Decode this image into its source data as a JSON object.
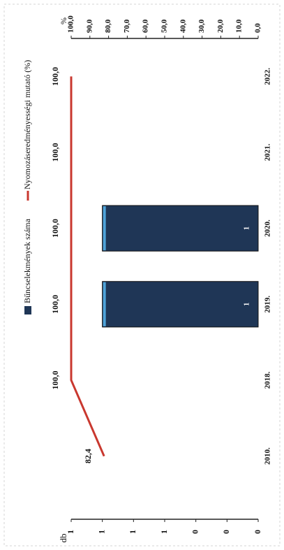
{
  "chart_data": {
    "type": "bar",
    "categories": [
      "2010.",
      "2018.",
      "2019.",
      "2020.",
      "2021.",
      "2022."
    ],
    "y_label": "db",
    "y2_label": "%",
    "series": [
      {
        "name": "Bűncselekmények száma",
        "color": "#1f3656",
        "type": "bar",
        "values": [
          null,
          null,
          1,
          1,
          null,
          null
        ],
        "value_labels": [
          null,
          null,
          "1",
          "1",
          null,
          null
        ]
      },
      {
        "name": "Nyomozáseredményességi mutató (%)",
        "color": "#c9382f",
        "type": "line",
        "axis": "y2",
        "values": [
          82.4,
          100,
          100,
          100,
          100,
          100
        ],
        "value_labels": [
          "82,4",
          "100,0",
          "100,0",
          "100,0",
          "100,0",
          "100,0"
        ]
      }
    ],
    "ylim": [
      0,
      1.2
    ],
    "yticks": [
      0,
      {
        "value": 0.2,
        "label": "0"
      },
      {
        "value": 0.4,
        "label": "0"
      },
      {
        "value": 0.6,
        "label": "1"
      },
      {
        "value": 0.8,
        "label": "1"
      },
      1,
      {
        "value": 1.2,
        "label": "1"
      }
    ],
    "y2lim": [
      0,
      100
    ],
    "y2ticks": [
      {
        "value": 0,
        "label": "0,0"
      },
      {
        "value": 10,
        "label": "10,0"
      },
      {
        "value": 20,
        "label": "20,0"
      },
      {
        "value": 30,
        "label": "30,0"
      },
      {
        "value": 40,
        "label": "40,0"
      },
      {
        "value": 50,
        "label": "50,0"
      },
      {
        "value": 60,
        "label": "60,0"
      },
      {
        "value": 70,
        "label": "70,0"
      },
      {
        "value": 80,
        "label": "80,0"
      },
      {
        "value": 90,
        "label": "90,0"
      },
      {
        "value": 100,
        "label": "100,0"
      }
    ]
  }
}
